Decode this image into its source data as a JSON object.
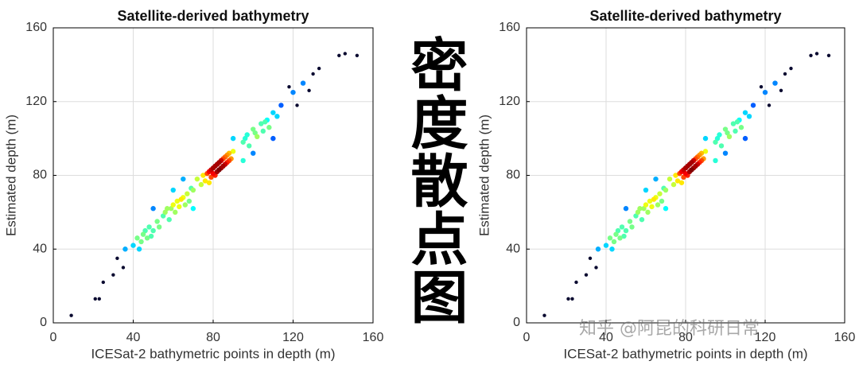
{
  "chart_data": [
    {
      "type": "scatter",
      "title": "Satellite-derived bathymetry",
      "xlabel": "ICESat-2 bathymetric points in depth (m)",
      "ylabel": "Estimated depth (m)",
      "x": [
        70,
        72,
        74,
        75,
        76,
        78,
        79,
        80,
        81,
        82,
        83,
        84,
        85,
        86,
        87,
        88,
        89,
        90,
        78,
        80,
        82,
        84,
        86,
        88,
        77,
        83,
        85,
        87,
        79,
        81,
        55,
        57,
        58,
        60,
        61,
        62,
        63,
        65,
        66,
        67,
        68,
        69,
        56,
        59,
        64,
        95,
        97,
        98,
        100,
        102,
        104,
        105,
        107,
        108,
        110,
        112,
        114,
        96,
        101,
        106,
        40,
        42,
        43,
        45,
        47,
        48,
        50,
        52,
        53,
        44,
        46,
        49,
        30,
        32,
        25,
        35,
        36,
        120,
        122,
        125,
        128,
        130,
        133,
        118,
        90,
        95,
        60,
        70,
        50,
        110,
        9,
        21,
        23,
        143,
        146,
        152,
        65,
        100
      ],
      "values": [
        72,
        78,
        75,
        80,
        77,
        82,
        79,
        84,
        80,
        86,
        83,
        88,
        85,
        90,
        87,
        92,
        89,
        93,
        76,
        81,
        82,
        84,
        86,
        88,
        81,
        87,
        89,
        91,
        83,
        85,
        58,
        62,
        56,
        64,
        60,
        66,
        63,
        68,
        64,
        70,
        66,
        73,
        60,
        62,
        67,
        98,
        102,
        96,
        105,
        101,
        108,
        104,
        110,
        106,
        114,
        112,
        118,
        100,
        103,
        109,
        42,
        46,
        40,
        48,
        46,
        52,
        50,
        55,
        52,
        44,
        50,
        47,
        26,
        35,
        22,
        30,
        40,
        125,
        118,
        130,
        126,
        135,
        138,
        128,
        100,
        88,
        72,
        62,
        62,
        100,
        4,
        13,
        13,
        145,
        146,
        145,
        78,
        92
      ],
      "xlim": [
        0,
        160
      ],
      "ylim": [
        0,
        160
      ],
      "xticks": [
        0,
        40,
        80,
        120,
        160
      ],
      "yticks": [
        0,
        40,
        80,
        120,
        160
      ],
      "grid": true
    },
    {
      "type": "scatter",
      "title": "Satellite-derived bathymetry",
      "xlabel": "ICESat-2 bathymetric points in depth (m)",
      "ylabel": "Estimated depth (m)",
      "x": [
        70,
        72,
        74,
        75,
        76,
        78,
        79,
        80,
        81,
        82,
        83,
        84,
        85,
        86,
        87,
        88,
        89,
        90,
        78,
        80,
        82,
        84,
        86,
        88,
        77,
        83,
        85,
        87,
        79,
        81,
        55,
        57,
        58,
        60,
        61,
        62,
        63,
        65,
        66,
        67,
        68,
        69,
        56,
        59,
        64,
        95,
        97,
        98,
        100,
        102,
        104,
        105,
        107,
        108,
        110,
        112,
        114,
        96,
        101,
        106,
        40,
        42,
        43,
        45,
        47,
        48,
        50,
        52,
        53,
        44,
        46,
        49,
        30,
        32,
        25,
        35,
        36,
        120,
        122,
        125,
        128,
        130,
        133,
        118,
        90,
        95,
        60,
        70,
        50,
        110,
        9,
        21,
        23,
        143,
        146,
        152,
        65,
        100
      ],
      "values": [
        72,
        78,
        75,
        80,
        77,
        82,
        79,
        84,
        80,
        86,
        83,
        88,
        85,
        90,
        87,
        92,
        89,
        93,
        76,
        81,
        82,
        84,
        86,
        88,
        81,
        87,
        89,
        91,
        83,
        85,
        58,
        62,
        56,
        64,
        60,
        66,
        63,
        68,
        64,
        70,
        66,
        73,
        60,
        62,
        67,
        98,
        102,
        96,
        105,
        101,
        108,
        104,
        110,
        106,
        114,
        112,
        118,
        100,
        103,
        109,
        42,
        46,
        40,
        48,
        46,
        52,
        50,
        55,
        52,
        44,
        50,
        47,
        26,
        35,
        22,
        30,
        40,
        125,
        118,
        130,
        126,
        135,
        138,
        128,
        100,
        88,
        72,
        62,
        62,
        100,
        4,
        13,
        13,
        145,
        146,
        145,
        78,
        92
      ],
      "xlim": [
        0,
        160
      ],
      "ylim": [
        0,
        160
      ],
      "xticks": [
        0,
        40,
        80,
        120,
        160
      ],
      "yticks": [
        0,
        40,
        80,
        120,
        160
      ],
      "grid": true
    }
  ],
  "side_title": "密度散点图",
  "watermark": "知乎 @阿昆的科研日常"
}
